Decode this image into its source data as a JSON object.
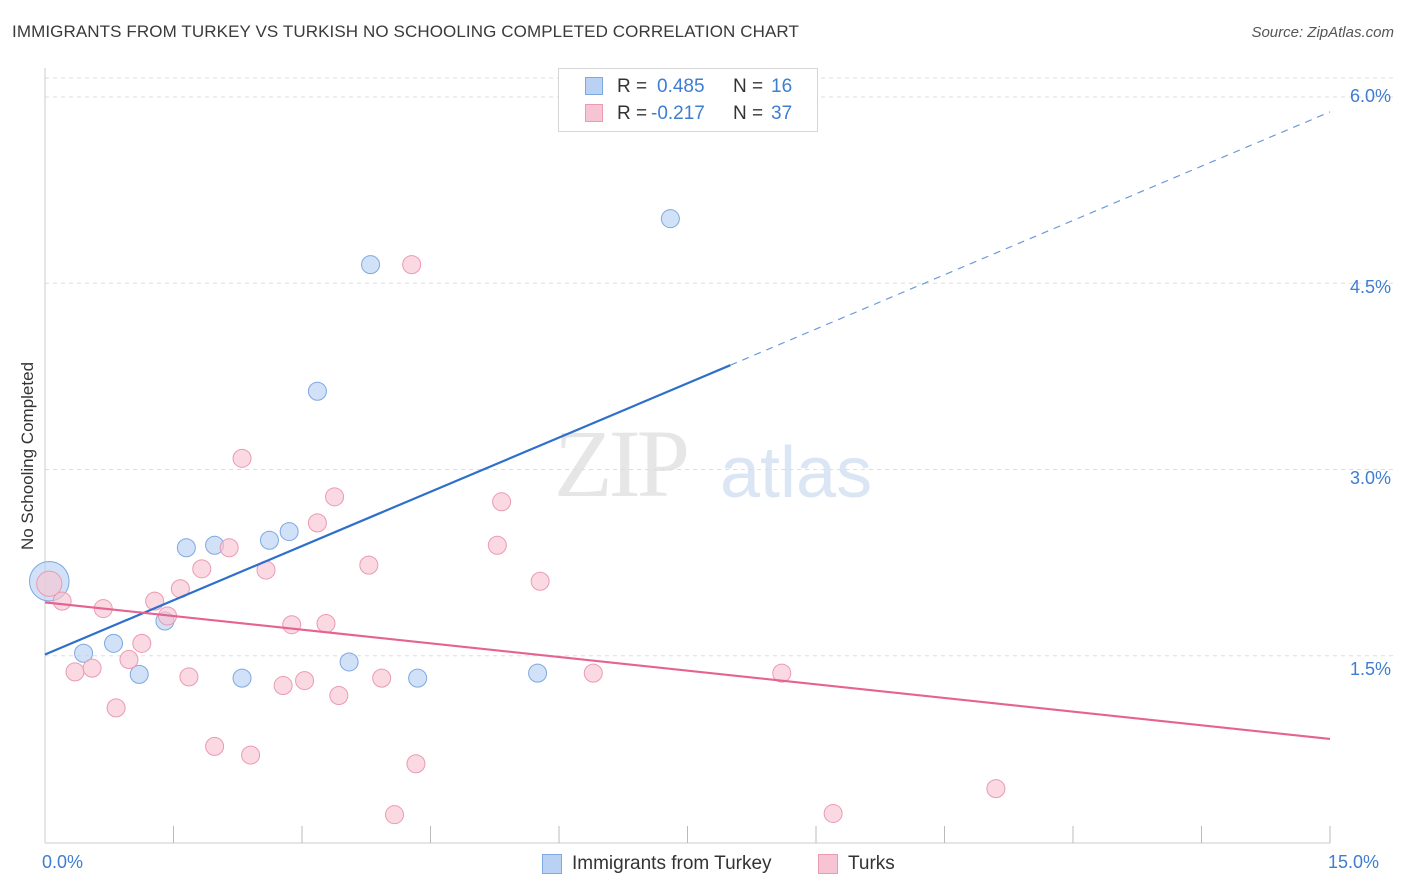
{
  "header": {
    "title": "IMMIGRANTS FROM TURKEY VS TURKISH NO SCHOOLING COMPLETED CORRELATION CHART",
    "source": "Source: ZipAtlas.com"
  },
  "watermark": {
    "zip": "ZIP",
    "atlas": "atlas"
  },
  "legend_top": {
    "rows": [
      {
        "r_label": "R =",
        "r_value": "0.485",
        "n_label": "N =",
        "n_value": "16"
      },
      {
        "r_label": "R =",
        "r_value": "-0.217",
        "n_label": "N =",
        "n_value": "37"
      }
    ]
  },
  "colors": {
    "blue_fill": "#b9d1f2",
    "blue_stroke": "#7ea8e0",
    "blue_line": "#2f6fcc",
    "pink_fill": "#f7c4d3",
    "pink_stroke": "#eb9ab3",
    "pink_line": "#e56391",
    "tick_text": "#3f7dd1",
    "grid": "#dddddd"
  },
  "chart_data": {
    "type": "scatter",
    "title": "IMMIGRANTS FROM TURKEY VS TURKISH NO SCHOOLING COMPLETED CORRELATION CHART",
    "xlabel": "",
    "ylabel": "No Schooling Completed",
    "xlim": [
      0,
      15
    ],
    "ylim": [
      0,
      6.2
    ],
    "x_tick_labels": [
      "0.0%",
      "15.0%"
    ],
    "y_ticks": [
      1.5,
      3.0,
      4.5,
      6.0
    ],
    "y_tick_labels": [
      "1.5%",
      "3.0%",
      "4.5%",
      "6.0%"
    ],
    "grid": true,
    "legend_position": "bottom-center",
    "series": [
      {
        "name": "Immigrants from Turkey",
        "color": "blue",
        "points": [
          [
            0.05,
            2.1,
            2.2
          ],
          [
            0.45,
            1.52,
            1
          ],
          [
            0.8,
            1.6,
            1
          ],
          [
            1.1,
            1.35,
            1
          ],
          [
            1.4,
            1.78,
            1
          ],
          [
            1.65,
            2.37,
            1
          ],
          [
            1.98,
            2.39,
            1
          ],
          [
            2.3,
            1.32,
            1
          ],
          [
            2.62,
            2.43,
            1
          ],
          [
            2.85,
            2.5,
            1
          ],
          [
            3.18,
            3.63,
            1
          ],
          [
            3.55,
            1.45,
            1
          ],
          [
            3.8,
            4.65,
            1
          ],
          [
            4.35,
            1.32,
            1
          ],
          [
            5.75,
            1.36,
            1
          ],
          [
            7.3,
            5.02,
            1
          ]
        ],
        "trend": {
          "x0": 0,
          "y0": 1.51,
          "x1": 8.0,
          "y1": 3.84,
          "dash_x1": 15.0,
          "dash_y1": 5.88
        }
      },
      {
        "name": "Turks",
        "color": "pink",
        "points": [
          [
            0.05,
            2.08,
            1.4
          ],
          [
            0.2,
            1.94,
            1
          ],
          [
            0.35,
            1.37,
            1
          ],
          [
            0.55,
            1.4,
            1
          ],
          [
            0.68,
            1.88,
            1
          ],
          [
            0.83,
            1.08,
            1
          ],
          [
            0.98,
            1.47,
            1
          ],
          [
            1.13,
            1.6,
            1
          ],
          [
            1.28,
            1.94,
            1
          ],
          [
            1.43,
            1.82,
            1
          ],
          [
            1.58,
            2.04,
            1
          ],
          [
            1.68,
            1.33,
            1
          ],
          [
            1.83,
            2.2,
            1
          ],
          [
            1.98,
            0.77,
            1
          ],
          [
            2.15,
            2.37,
            1
          ],
          [
            2.3,
            3.09,
            1
          ],
          [
            2.4,
            0.7,
            1
          ],
          [
            2.58,
            2.19,
            1
          ],
          [
            2.78,
            1.26,
            1
          ],
          [
            2.88,
            1.75,
            1
          ],
          [
            3.03,
            1.3,
            1
          ],
          [
            3.18,
            2.57,
            1
          ],
          [
            3.28,
            1.76,
            1
          ],
          [
            3.38,
            2.78,
            1
          ],
          [
            3.43,
            1.18,
            1
          ],
          [
            3.78,
            2.23,
            1
          ],
          [
            3.93,
            1.32,
            1
          ],
          [
            4.08,
            0.22,
            1
          ],
          [
            4.33,
            0.63,
            1
          ],
          [
            4.28,
            4.65,
            1
          ],
          [
            5.28,
            2.39,
            1
          ],
          [
            5.33,
            2.74,
            1
          ],
          [
            5.78,
            2.1,
            1
          ],
          [
            6.4,
            1.36,
            1
          ],
          [
            8.6,
            1.36,
            1
          ],
          [
            9.2,
            0.23,
            1
          ],
          [
            11.1,
            0.43,
            1
          ]
        ],
        "trend": {
          "x0": 0,
          "y0": 1.93,
          "x1": 15.0,
          "y1": 0.83
        }
      }
    ]
  },
  "bottom_legend": {
    "items": [
      {
        "label": "Immigrants from Turkey"
      },
      {
        "label": "Turks"
      }
    ]
  }
}
